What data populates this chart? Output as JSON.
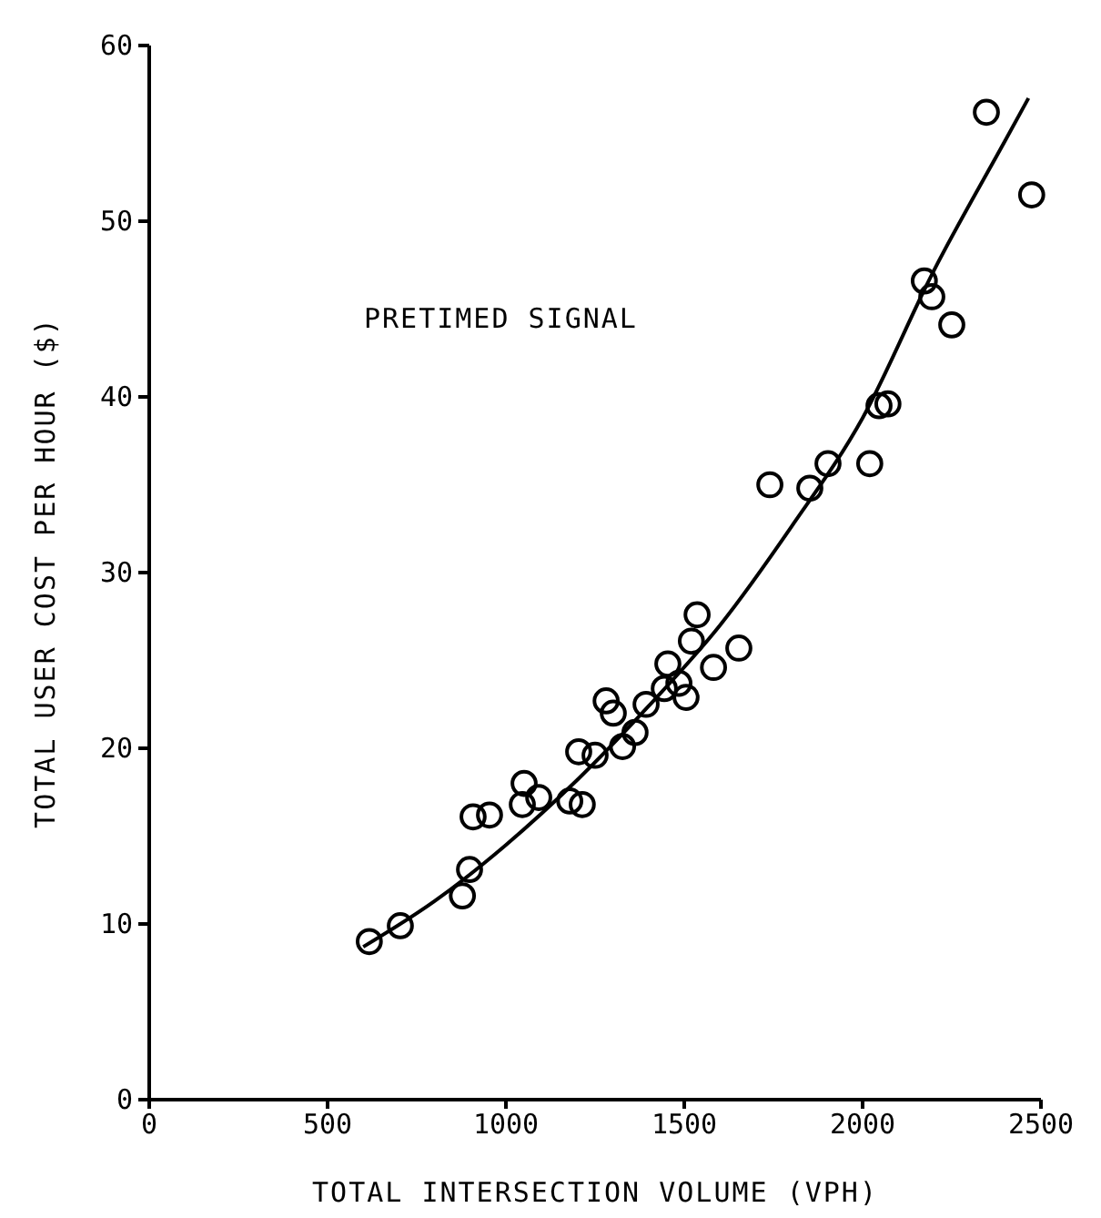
{
  "chart_data": {
    "type": "scatter",
    "xlabel": "TOTAL INTERSECTION VOLUME (VPH)",
    "ylabel": "TOTAL USER COST PER HOUR ($)",
    "annotations": [
      "PRETIMED SIGNAL"
    ],
    "xlim": [
      0,
      2500
    ],
    "ylim": [
      0,
      60
    ],
    "xticks": [
      0,
      500,
      1000,
      1500,
      2000,
      2500
    ],
    "yticks": [
      0,
      10,
      20,
      30,
      40,
      50,
      60
    ],
    "grid": false,
    "series": [
      {
        "color": "#000000",
        "marker": "circle",
        "x": [
          617,
          704,
          878,
          898,
          908,
          954,
          1046,
          1051,
          1092,
          1179,
          1204,
          1214,
          1250,
          1281,
          1301,
          1327,
          1362,
          1393,
          1444,
          1454,
          1485,
          1505,
          1520,
          1536,
          1582,
          1653,
          1740,
          1852,
          1903,
          2020,
          2046,
          2071,
          2173,
          2194,
          2250,
          2347,
          2474
        ],
        "values": [
          9.0,
          9.9,
          11.6,
          13.1,
          16.1,
          16.2,
          16.8,
          18.0,
          17.2,
          17.0,
          19.8,
          16.8,
          19.6,
          22.7,
          22.0,
          20.1,
          20.9,
          22.5,
          23.4,
          24.8,
          23.7,
          22.9,
          26.1,
          27.6,
          24.6,
          25.7,
          35.0,
          34.8,
          36.2,
          36.2,
          39.5,
          39.6,
          46.6,
          45.7,
          44.1,
          56.2,
          51.5
        ]
      },
      {
        "type": "line",
        "color": "#000000",
        "line_style": "solid",
        "x": [
          600,
          800,
          1000,
          1200,
          1400,
          1600,
          1800,
          2000,
          2200,
          2400,
          2465
        ],
        "values": [
          8.7,
          11.3,
          14.5,
          18.2,
          22.4,
          27.0,
          32.6,
          38.8,
          47.2,
          54.6,
          57.0
        ]
      }
    ]
  }
}
